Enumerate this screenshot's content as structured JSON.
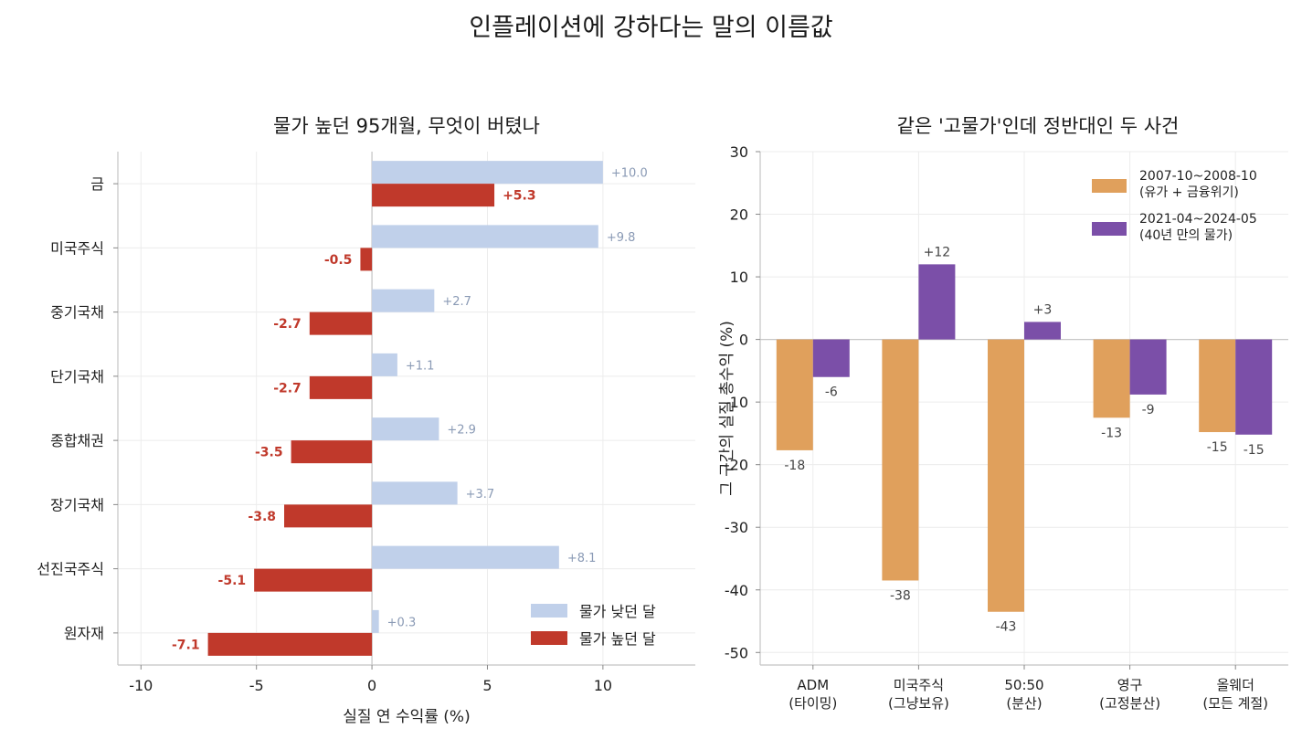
{
  "suptitle": "인플레이션에 강하다는 말의 이름값",
  "colors": {
    "low_inflation": "#c0d0ea",
    "high_inflation": "#c0392b",
    "period_2007": "#e0a05c",
    "period_2021": "#7b4fa8",
    "low_label": "#8a9ab5"
  },
  "chart_data": [
    {
      "type": "bar",
      "orientation": "horizontal",
      "title": "물가 높던 95개월, 무엇이 버텼나",
      "xlabel": "실질 연 수익률 (%)",
      "ylabel": "",
      "xlim": [
        -11,
        14
      ],
      "xticks": [
        -10,
        -5,
        0,
        5,
        10
      ],
      "xtick_labels": [
        "-10",
        "-5",
        "0",
        "5",
        "10"
      ],
      "categories": [
        "금",
        "미국주식",
        "중기국채",
        "단기국채",
        "종합채권",
        "장기국채",
        "선진국주식",
        "원자재"
      ],
      "series": [
        {
          "name": "물가 낮던 달",
          "values": [
            10.0,
            9.8,
            2.7,
            1.1,
            2.9,
            3.7,
            8.1,
            0.3
          ],
          "labels": [
            "+10.0",
            "+9.8",
            "+2.7",
            "+1.1",
            "+2.9",
            "+3.7",
            "+8.1",
            "+0.3"
          ]
        },
        {
          "name": "물가 높던 달",
          "values": [
            5.3,
            -0.5,
            -2.7,
            -2.7,
            -3.5,
            -3.8,
            -5.1,
            -7.1
          ],
          "labels": [
            "+5.3",
            "-0.5",
            "-2.7",
            "-2.7",
            "-3.5",
            "-3.8",
            "-5.1",
            "-7.1"
          ]
        }
      ],
      "legend_position": "lower-right",
      "grid": true
    },
    {
      "type": "bar",
      "orientation": "vertical",
      "title": "같은 '고물가'인데 정반대인 두 사건",
      "xlabel": "",
      "ylabel": "그 구간의 실질 총수익 (%)",
      "ylim": [
        -52,
        30
      ],
      "yticks": [
        -50,
        -40,
        -30,
        -20,
        -10,
        0,
        10,
        20,
        30
      ],
      "ytick_labels": [
        "-50",
        "-40",
        "-30",
        "-20",
        "-10",
        "0",
        "10",
        "20",
        "30"
      ],
      "categories": [
        [
          "ADM",
          "(타이밍)"
        ],
        [
          "미국주식",
          "(그냥보유)"
        ],
        [
          "50:50",
          "(분산)"
        ],
        [
          "영구",
          "(고정분산)"
        ],
        [
          "올웨더",
          "(모든 계절)"
        ]
      ],
      "series": [
        {
          "name": [
            "2007-10~2008-10",
            "(유가 + 금융위기)"
          ],
          "values": [
            -17.7,
            -38.5,
            -43.5,
            -12.5,
            -14.8
          ],
          "labels": [
            "-18",
            "-38",
            "-43",
            "-13",
            "-15"
          ]
        },
        {
          "name": [
            "2021-04~2024-05",
            "(40년 만의 물가)"
          ],
          "values": [
            -6.0,
            12.0,
            2.8,
            -8.8,
            -15.2
          ],
          "labels": [
            "-6",
            "+12",
            "+3",
            "-9",
            "-15"
          ]
        }
      ],
      "legend_position": "top-right",
      "grid": true
    }
  ]
}
